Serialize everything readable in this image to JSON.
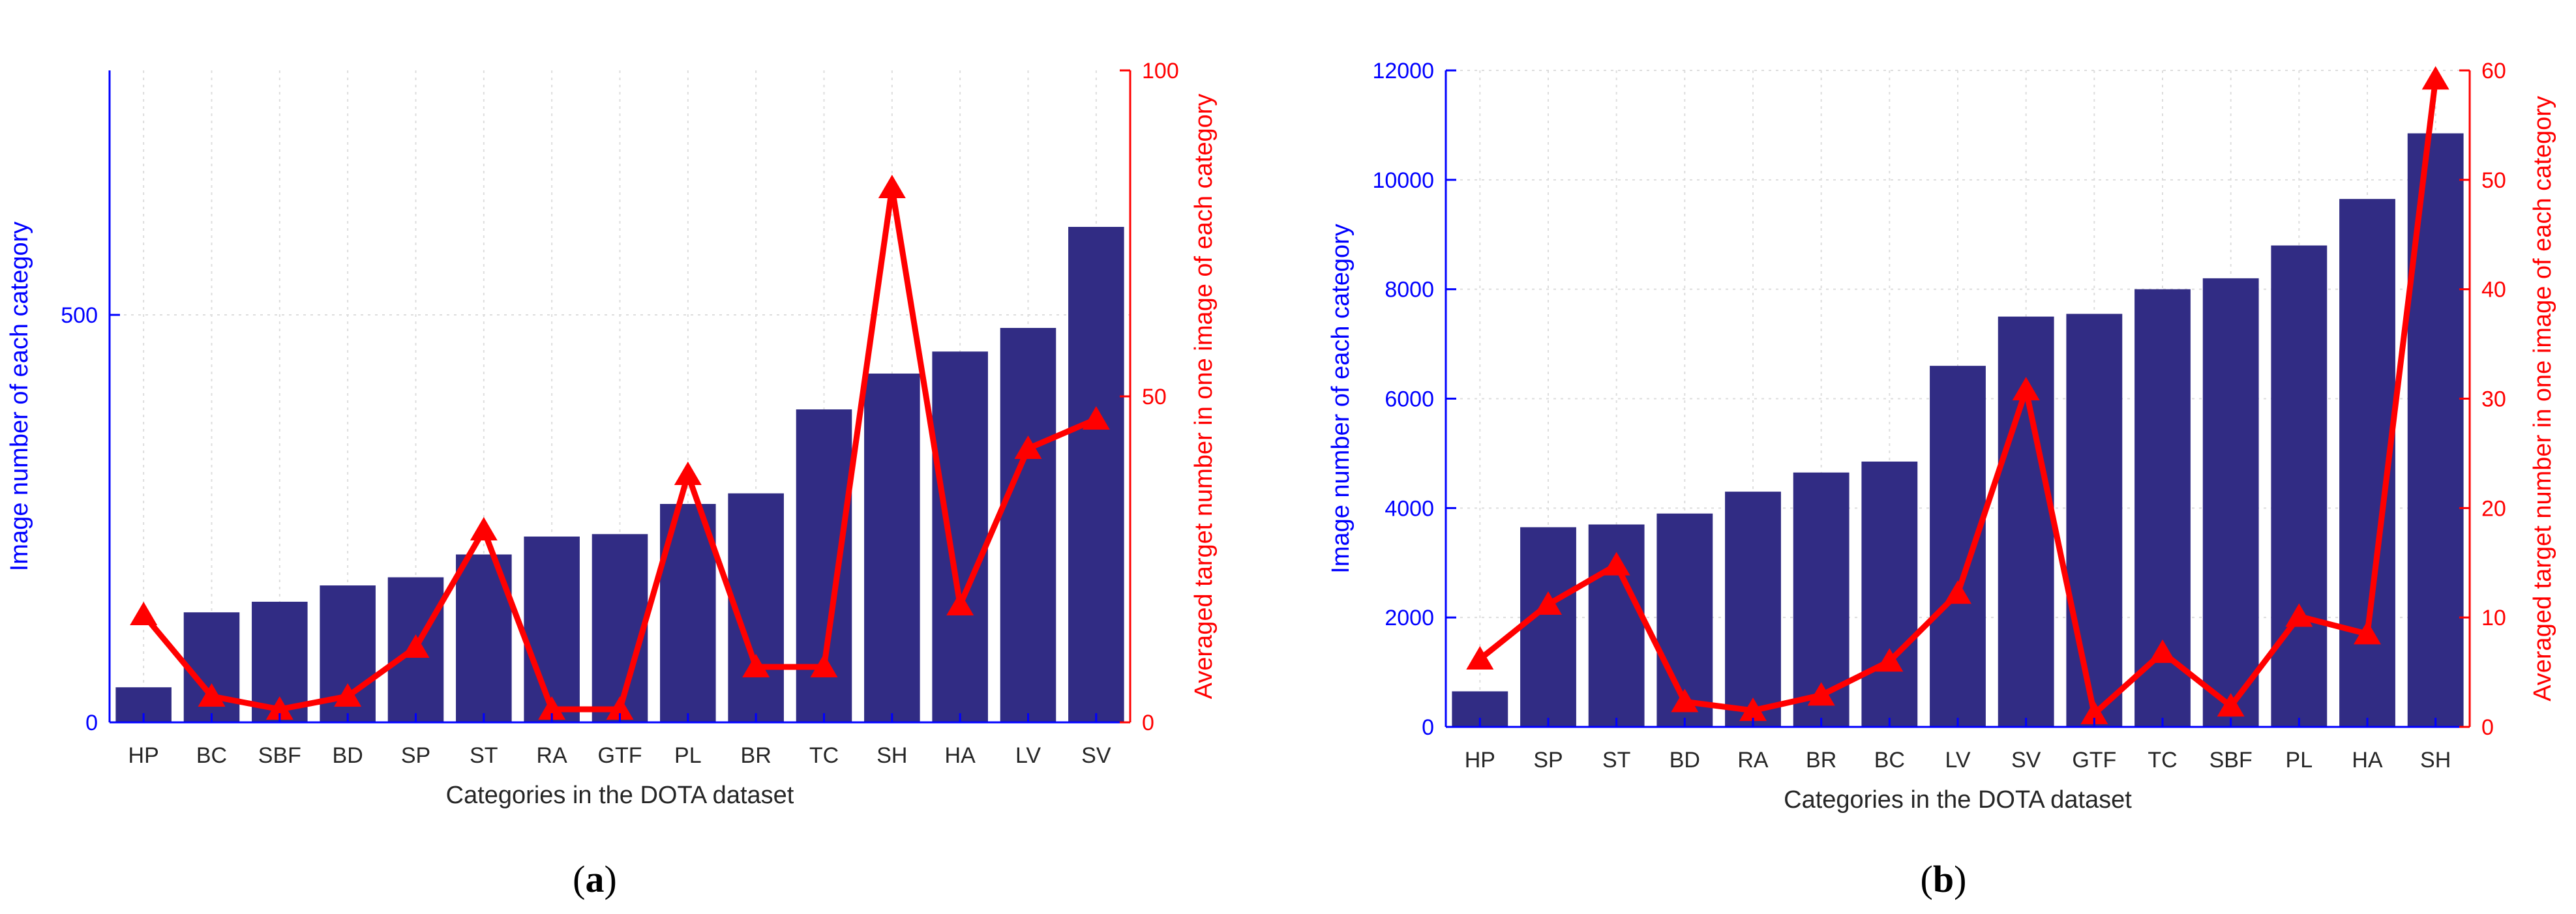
{
  "colors": {
    "bar": "#312c84",
    "line": "#ff0000",
    "left_axis": "#0000ff",
    "right_axis": "#ff0000",
    "grid": "#dddddd",
    "text": "#262626"
  },
  "chart_data": [
    {
      "type": "bar",
      "panel_label": "(a)",
      "panel_letter": "a",
      "xlabel": "Categories in the DOTA dataset",
      "ylabel_left": "Image number of each category",
      "ylabel_right": "Averaged target number in one image of each category",
      "ylim_left": [
        0,
        800
      ],
      "left_ticks": [
        0,
        500
      ],
      "ylim_right": [
        0,
        100
      ],
      "right_ticks": [
        0,
        50,
        100
      ],
      "grid": true,
      "categories": [
        "HP",
        "BC",
        "SBF",
        "BD",
        "SP",
        "ST",
        "RA",
        "GTF",
        "PL",
        "BR",
        "TC",
        "SH",
        "HA",
        "LV",
        "SV"
      ],
      "series": [
        {
          "name": "Image number",
          "axis": "left",
          "kind": "bar",
          "values": [
            43,
            135,
            148,
            168,
            178,
            206,
            228,
            231,
            268,
            281,
            384,
            428,
            455,
            484,
            608
          ]
        },
        {
          "name": "Averaged target number",
          "axis": "right",
          "kind": "line",
          "values": [
            16.5,
            4,
            2,
            4,
            11.5,
            29.5,
            2,
            2,
            38,
            8.5,
            8.5,
            82,
            18,
            42,
            46.5
          ]
        }
      ]
    },
    {
      "type": "bar",
      "panel_label": "(b)",
      "panel_letter": "b",
      "xlabel": "Categories in the DOTA dataset",
      "ylabel_left": "Image number of each category",
      "ylabel_right": "Averaged target number in one image of each category",
      "ylim_left": [
        0,
        12000
      ],
      "left_ticks": [
        0,
        2000,
        4000,
        6000,
        8000,
        10000,
        12000
      ],
      "ylim_right": [
        0,
        60
      ],
      "right_ticks": [
        0,
        10,
        20,
        30,
        40,
        50,
        60
      ],
      "grid": true,
      "categories": [
        "HP",
        "SP",
        "ST",
        "BD",
        "RA",
        "BR",
        "BC",
        "LV",
        "SV",
        "GTF",
        "TC",
        "SBF",
        "PL",
        "HA",
        "SH"
      ],
      "series": [
        {
          "name": "Image number",
          "axis": "left",
          "kind": "bar",
          "values": [
            650,
            3650,
            3700,
            3900,
            4300,
            4650,
            4850,
            6600,
            7500,
            7550,
            8000,
            8200,
            8800,
            9650,
            10850
          ]
        },
        {
          "name": "Averaged target number",
          "axis": "right",
          "kind": "line",
          "values": [
            6.2,
            11.2,
            14.8,
            2.3,
            1.5,
            2.9,
            6,
            12.2,
            30.8,
            1.2,
            6.8,
            1.9,
            10.1,
            8.5,
            59.2
          ]
        }
      ]
    }
  ]
}
